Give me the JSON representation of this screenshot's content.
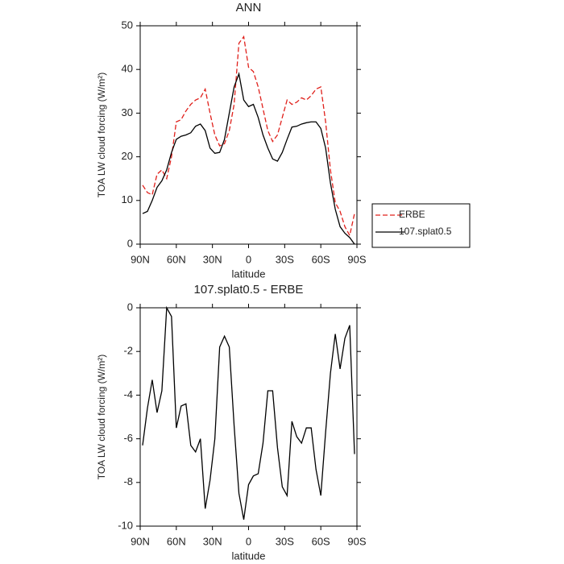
{
  "chart_data": [
    {
      "type": "line",
      "title": "ANN",
      "xlabel": "latitude",
      "ylabel": "TOA LW cloud forcing (W/m²)",
      "x": [
        88,
        84,
        80,
        76,
        72,
        68,
        64,
        60,
        56,
        52,
        48,
        44,
        40,
        36,
        32,
        28,
        24,
        20,
        16,
        12,
        8,
        4,
        0,
        -4,
        -8,
        -12,
        -16,
        -20,
        -24,
        -28,
        -32,
        -36,
        -40,
        -44,
        -48,
        -52,
        -56,
        -60,
        -64,
        -68,
        -72,
        -76,
        -80,
        -84,
        -88
      ],
      "series": [
        {
          "name": "ERBE",
          "color": "#e0201b",
          "dash": "dashed",
          "values": [
            13.5,
            11.8,
            11.3,
            16,
            17,
            15,
            20,
            28,
            28.5,
            30.5,
            32,
            33,
            33.5,
            35.5,
            30,
            25,
            22.5,
            23,
            26,
            32,
            46,
            47.5,
            40.5,
            39.5,
            36,
            31,
            26,
            23.5,
            25,
            29,
            33,
            32,
            32.5,
            33.5,
            33,
            34,
            35.5,
            36,
            28,
            17,
            9.5,
            7.5,
            4,
            2,
            7
          ]
        },
        {
          "name": "107.splat0.5",
          "color": "#000000",
          "dash": "solid",
          "values": [
            7,
            7.5,
            10,
            13,
            14.5,
            17,
            21,
            24,
            24.7,
            25,
            25.5,
            27,
            27.5,
            26,
            22,
            20.8,
            21,
            24,
            30,
            36,
            39,
            33,
            31.5,
            32,
            29,
            25,
            22,
            19.5,
            19,
            21,
            24,
            26.8,
            27,
            27.5,
            27.8,
            28,
            28,
            26.5,
            22,
            14,
            8,
            4,
            2.5,
            1.5,
            0
          ]
        }
      ],
      "xlim": [
        90,
        -90
      ],
      "xticks": [
        {
          "value": 90,
          "label": "90N"
        },
        {
          "value": 60,
          "label": "60N"
        },
        {
          "value": 30,
          "label": "30N"
        },
        0,
        {
          "value": -30,
          "label": "30S"
        },
        {
          "value": -60,
          "label": "60S"
        },
        {
          "value": -90,
          "label": "90S"
        }
      ],
      "ylim": [
        0,
        50
      ],
      "yticks": [
        0,
        10,
        20,
        30,
        40,
        50
      ],
      "legend": "right"
    },
    {
      "type": "line",
      "title": "107.splat0.5 - ERBE",
      "xlabel": "latitude",
      "ylabel": "TOA LW cloud forcing (W/m²)",
      "x": [
        88,
        84,
        80,
        76,
        72,
        68,
        64,
        60,
        56,
        52,
        48,
        44,
        40,
        36,
        32,
        28,
        24,
        20,
        16,
        12,
        8,
        4,
        0,
        -4,
        -8,
        -12,
        -16,
        -20,
        -24,
        -28,
        -32,
        -36,
        -40,
        -44,
        -48,
        -52,
        -56,
        -60,
        -64,
        -68,
        -72,
        -76,
        -80,
        -84,
        -88
      ],
      "values": [
        -6.3,
        -4.6,
        -3.3,
        -4.8,
        -3.8,
        0,
        -0.4,
        -5.5,
        -4.5,
        -4.4,
        -6.3,
        -6.6,
        -6.0,
        -9.2,
        -7.9,
        -6.0,
        -1.8,
        -1.3,
        -1.8,
        -5.4,
        -8.5,
        -9.7,
        -8.1,
        -7.7,
        -7.6,
        -6.2,
        -3.8,
        -3.8,
        -6.4,
        -8.2,
        -8.6,
        -5.2,
        -5.9,
        -6.2,
        -5.5,
        -5.5,
        -7.4,
        -8.6,
        -5.7,
        -3.0,
        -1.2,
        -2.8,
        -1.4,
        -0.8,
        -6.7
      ],
      "color": "#000000",
      "dash": "solid",
      "xlim": [
        90,
        -90
      ],
      "xticks": [
        {
          "value": 90,
          "label": "90N"
        },
        {
          "value": 60,
          "label": "60N"
        },
        {
          "value": 30,
          "label": "30N"
        },
        0,
        {
          "value": -30,
          "label": "30S"
        },
        {
          "value": -60,
          "label": "60S"
        },
        {
          "value": -90,
          "label": "90S"
        }
      ],
      "ylim": [
        -10,
        0
      ],
      "yticks": [
        -10,
        -8,
        -6,
        -4,
        -2,
        0
      ]
    }
  ]
}
